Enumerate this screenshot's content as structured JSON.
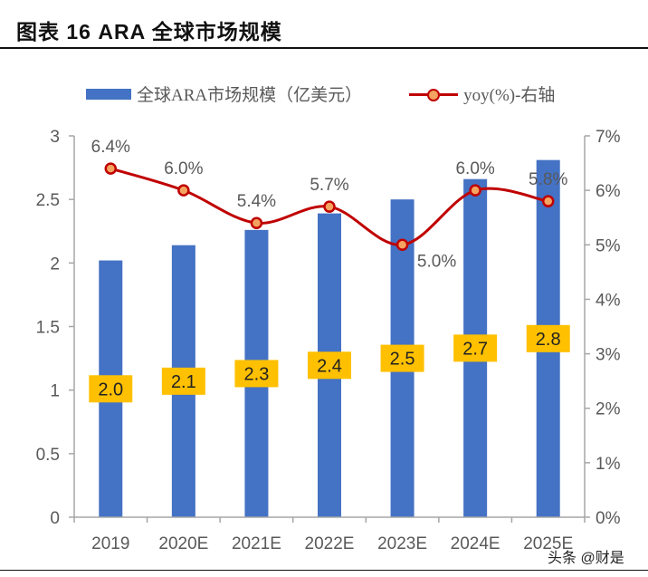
{
  "title": "图表 16 ARA 全球市场规模",
  "watermark": "头条 @财是",
  "chart_data": {
    "type": "bar+line",
    "categories": [
      "2019",
      "2020E",
      "2021E",
      "2022E",
      "2023E",
      "2024E",
      "2025E"
    ],
    "series": [
      {
        "name": "全球ARA市场规模（亿美元）",
        "type": "bar",
        "axis": "left",
        "color": "#4472C4",
        "values": [
          2.02,
          2.14,
          2.26,
          2.39,
          2.5,
          2.66,
          2.81
        ],
        "labels": [
          "2.0",
          "2.1",
          "2.3",
          "2.4",
          "2.5",
          "2.7",
          "2.8"
        ]
      },
      {
        "name": "yoy(%)-右轴",
        "type": "line",
        "axis": "right",
        "color": "#C00000",
        "values": [
          6.4,
          6.0,
          5.4,
          5.7,
          5.0,
          6.0,
          5.8
        ],
        "labels": [
          "6.4%",
          "6.0%",
          "5.4%",
          "5.7%",
          "5.0%",
          "6.0%",
          "5.8%"
        ]
      }
    ],
    "left_axis": {
      "ylim": [
        0,
        3
      ],
      "ticks": [
        "0",
        "0.5",
        "1",
        "1.5",
        "2",
        "2.5",
        "3"
      ]
    },
    "right_axis": {
      "ylim": [
        0,
        7
      ],
      "ticks": [
        "0%",
        "1%",
        "2%",
        "3%",
        "4%",
        "5%",
        "6%",
        "7%"
      ]
    },
    "legend": "top",
    "grid": false
  }
}
